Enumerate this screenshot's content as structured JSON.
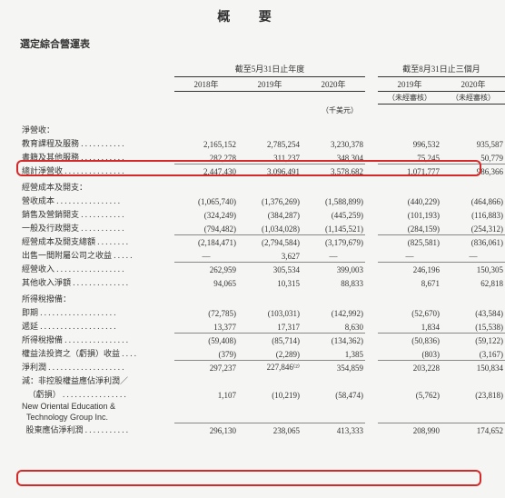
{
  "titles": {
    "page": "概 要",
    "sub": "選定綜合營運表"
  },
  "headers": {
    "fy_span": "截至5月31日止年度",
    "qtr_span": "截至8月31日止三個月",
    "fy2018": "2018年",
    "fy2019": "2019年",
    "fy2020": "2020年",
    "q2019": "2019年",
    "q2020": "2020年",
    "unaudited": "（未經審核）",
    "unit": "（千美元）"
  },
  "labels": {
    "net_rev": "淨營收：",
    "edu": "教育課程及服務 . . . . . . . . . . .",
    "books": "書籍及其他服務 . . . . . . . . . . .",
    "total_rev": "總計淨營收 . . . . . . . . . . . . . . .",
    "opex_hdr": "經營成本及開支：",
    "cogs": "營收成本 . . . . . . . . . . . . . . . .",
    "sm": "銷售及營銷開支 . . . . . . . . . . .",
    "ga": "一般及行政開支 . . . . . . . . . . .",
    "total_opex": "經營成本及開支總額 . . . . . . . .",
    "gain_sub": "出售一間附屬公司之收益 . . . . .",
    "op_inc": "經營收入 . . . . . . . . . . . . . . . . .",
    "other_inc": "其他收入淨額 . . . . . . . . . . . . . .",
    "tax_hdr": "所得稅撥備：",
    "tax_cur": "即期 . . . . . . . . . . . . . . . . . . .",
    "tax_def": "遞延 . . . . . . . . . . . . . . . . . . .",
    "tax_tot": "所得稅撥備 . . . . . . . . . . . . . . . .",
    "equity_inv": "權益法投資之（虧損）收益 . . . .",
    "net_profit": "淨利潤 . . . . . . . . . . . . . . . . . . .",
    "nci1": "減：非控股權益應佔淨利潤／",
    "nci2": "   （虧損） . . . . . . . . . . . . . . . .",
    "grp": "New Oriental Education &",
    "grp2": "  Technology Group Inc.",
    "attrib": "  股東應佔淨利潤 . . . . . . . . . . .",
    "dash": "—"
  },
  "v": {
    "edu": [
      "2,165,152",
      "2,785,254",
      "3,230,378",
      "996,532",
      "935,587"
    ],
    "books": [
      "282,278",
      "311,237",
      "348,304",
      "75,245",
      "50,779"
    ],
    "total_rev": [
      "2,447,430",
      "3,096,491",
      "3,578,682",
      "1,071,777",
      "986,366"
    ],
    "cogs": [
      "(1,065,740)",
      "(1,376,269)",
      "(1,588,899)",
      "(440,229)",
      "(464,866)"
    ],
    "sm": [
      "(324,249)",
      "(384,287)",
      "(445,259)",
      "(101,193)",
      "(116,883)"
    ],
    "ga": [
      "(794,482)",
      "(1,034,028)",
      "(1,145,521)",
      "(284,159)",
      "(254,312)"
    ],
    "total_opex": [
      "(2,184,471)",
      "(2,794,584)",
      "(3,179,679)",
      "(825,581)",
      "(836,061)"
    ],
    "gain_sub": [
      "",
      "3,627",
      "",
      "",
      ""
    ],
    "op_inc": [
      "262,959",
      "305,534",
      "399,003",
      "246,196",
      "150,305"
    ],
    "other_inc": [
      "94,065",
      "10,315",
      "88,833",
      "8,671",
      "62,818"
    ],
    "tax_cur": [
      "(72,785)",
      "(103,031)",
      "(142,992)",
      "(52,670)",
      "(43,584)"
    ],
    "tax_def": [
      "13,377",
      "17,317",
      "8,630",
      "1,834",
      "(15,538)"
    ],
    "tax_tot": [
      "(59,408)",
      "(85,714)",
      "(134,362)",
      "(50,836)",
      "(59,122)"
    ],
    "equity_inv": [
      "(379)",
      "(2,289)",
      "1,385",
      "(803)",
      "(3,167)"
    ],
    "net_profit": [
      "297,237",
      "227,846⁽²⁾",
      "354,859",
      "203,228",
      "150,834"
    ],
    "nci": [
      "1,107",
      "(10,219)",
      "(58,474)",
      "(5,762)",
      "(23,818)"
    ],
    "attrib": [
      "296,130",
      "238,065",
      "413,333",
      "208,990",
      "174,652"
    ]
  }
}
